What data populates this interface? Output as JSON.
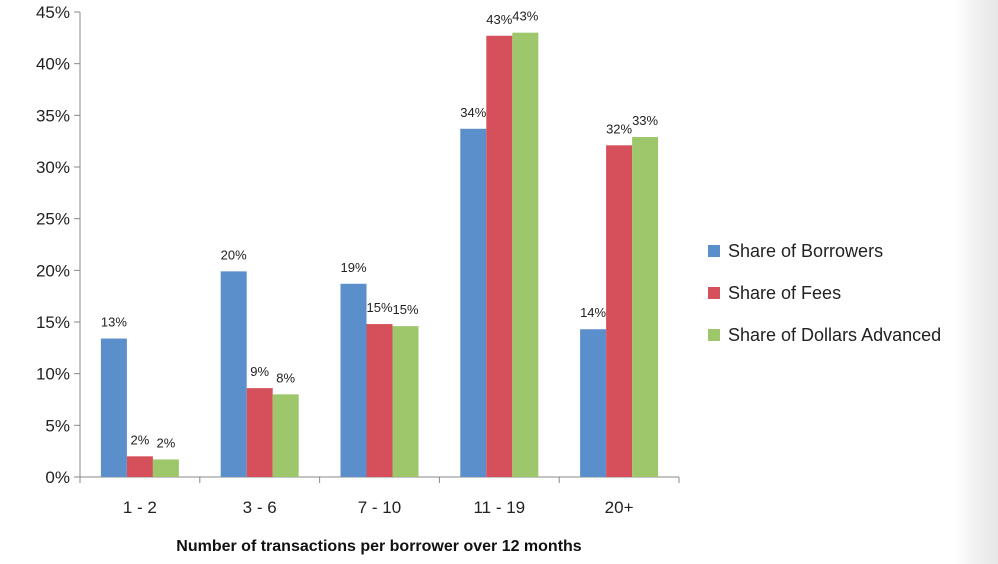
{
  "chart_data": {
    "type": "bar",
    "title": "",
    "xlabel": "Number of transactions per borrower over 12 months",
    "ylabel": "",
    "ylim": [
      0,
      45
    ],
    "ytick_step": 5,
    "ytick_suffix": "%",
    "categories": [
      "1 - 2",
      "3 - 6",
      "7 - 10",
      "11 - 19",
      "20+"
    ],
    "series": [
      {
        "name": "Share of Borrowers",
        "color": "#5b8fcb",
        "values": [
          13.4,
          19.9,
          18.7,
          33.7,
          14.3
        ],
        "labels": [
          "13%",
          "20%",
          "19%",
          "34%",
          "14%"
        ]
      },
      {
        "name": "Share of Fees",
        "color": "#d5505a",
        "values": [
          2.0,
          8.6,
          14.8,
          42.7,
          32.1
        ],
        "labels": [
          "2%",
          "9%",
          "15%",
          "43%",
          "32%"
        ]
      },
      {
        "name": "Share of Dollars Advanced",
        "color": "#9ec66b",
        "values": [
          1.7,
          8.0,
          14.6,
          43.0,
          32.9
        ],
        "labels": [
          "2%",
          "8%",
          "15%",
          "43%",
          "33%"
        ]
      }
    ],
    "legend_position": "right",
    "grid": false
  }
}
